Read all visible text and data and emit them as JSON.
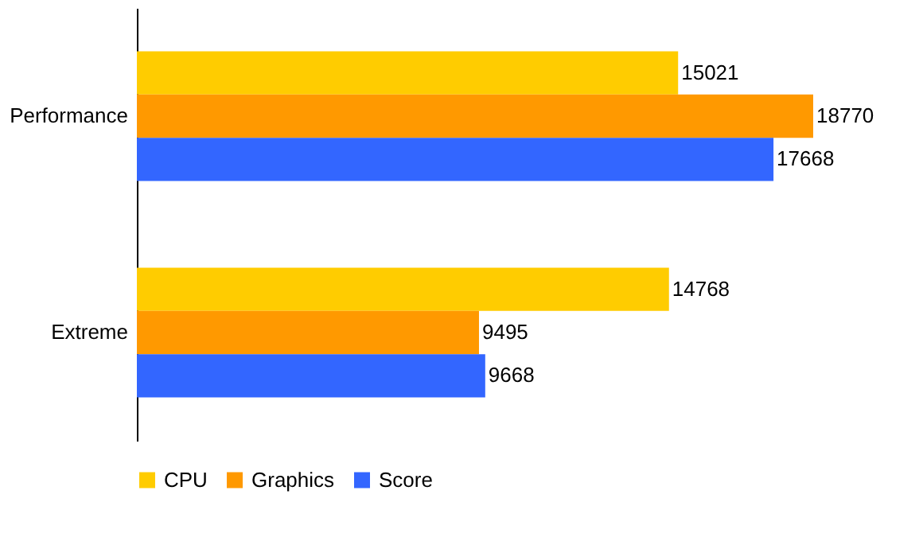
{
  "chart_data": {
    "type": "bar",
    "orientation": "horizontal",
    "categories": [
      "Performance",
      "Extreme"
    ],
    "series": [
      {
        "name": "CPU",
        "color": "#ffcc00",
        "values": [
          15021,
          14768
        ]
      },
      {
        "name": "Graphics",
        "color": "#ff9900",
        "values": [
          18770,
          9495
        ]
      },
      {
        "name": "Score",
        "color": "#3366ff",
        "values": [
          17668,
          9668
        ]
      }
    ],
    "data_labels": true,
    "legend": "bottom",
    "tick_labels": "y"
  }
}
